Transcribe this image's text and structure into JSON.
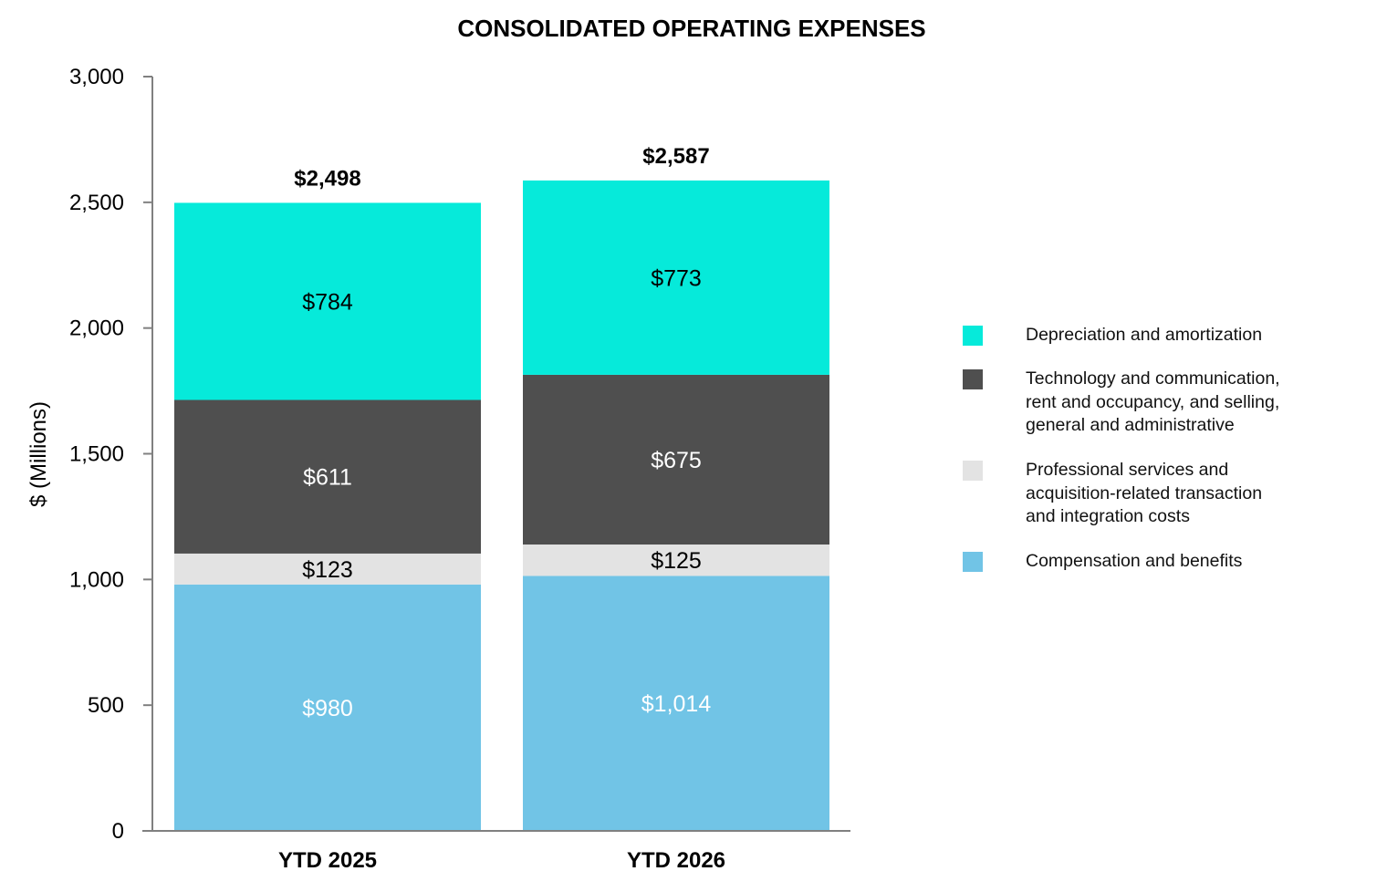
{
  "chart_data": {
    "type": "bar",
    "stacked": true,
    "title": "CONSOLIDATED OPERATING EXPENSES",
    "ylabel": "$ (Millions)",
    "xlabel": "",
    "ylim": [
      0,
      3000
    ],
    "yticks": [
      0,
      500,
      1000,
      1500,
      2000,
      2500,
      3000
    ],
    "ytick_labels": [
      "0",
      "500",
      "1,000",
      "1,500",
      "2,000",
      "2,500",
      "3,000"
    ],
    "categories": [
      "YTD 2025",
      "YTD 2026"
    ],
    "totals": [
      2498,
      2587
    ],
    "total_labels": [
      "$2,498",
      "$2,587"
    ],
    "series": [
      {
        "name": "Compensation and benefits",
        "values": [
          980,
          1014
        ],
        "labels": [
          "$980",
          "$1,014"
        ],
        "color": "#71C4E6",
        "label_color": "#ffffff"
      },
      {
        "name": "Professional services and\n acquisition-related  transaction\n and integration costs",
        "values": [
          123,
          125
        ],
        "labels": [
          "$123",
          "$125"
        ],
        "color": "#E3E3E3",
        "label_color": "#000000"
      },
      {
        "name": "Technology and communication,\nrent and occupancy, and selling,\ngeneral and administrative",
        "values": [
          611,
          675
        ],
        "labels": [
          "$611",
          "$675"
        ],
        "color": "#4F4F4F",
        "label_color": "#ffffff"
      },
      {
        "name": "Depreciation and amortization",
        "values": [
          784,
          773
        ],
        "labels": [
          "$784",
          "$773"
        ],
        "color": "#06EADA",
        "label_color": "#000000"
      }
    ],
    "legend_order": [
      3,
      2,
      1,
      0
    ],
    "legend_position": "right",
    "grid": false
  }
}
